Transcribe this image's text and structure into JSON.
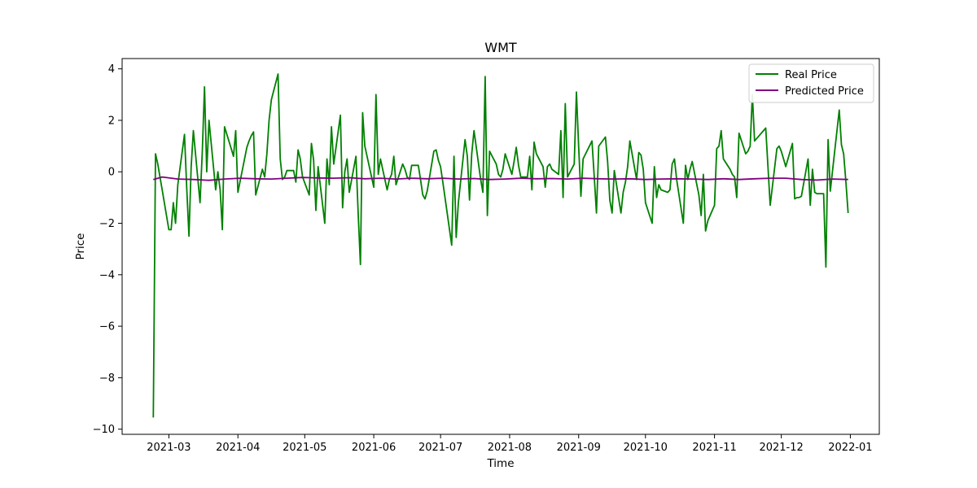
{
  "chart_data": {
    "type": "line",
    "title": "WMT",
    "xlabel": "Time",
    "ylabel": "Price",
    "x_range": [
      "2021-02-08",
      "2022-01-14"
    ],
    "ylim": [
      -10.2,
      4.4
    ],
    "x_ticks": [
      "2021-03",
      "2021-04",
      "2021-05",
      "2021-06",
      "2021-07",
      "2021-08",
      "2021-09",
      "2021-10",
      "2021-11",
      "2021-12",
      "2022-01"
    ],
    "y_ticks": [
      -10,
      -8,
      -6,
      -4,
      -2,
      0,
      2,
      4
    ],
    "grid": false,
    "legend_position": "upper right",
    "series": [
      {
        "name": "Real Price",
        "color": "#008000",
        "points": [
          [
            "2021-02-22",
            -9.55
          ],
          [
            "2021-02-23",
            0.7
          ],
          [
            "2021-02-24",
            0.3
          ],
          [
            "2021-02-25",
            -0.2
          ],
          [
            "2021-02-26",
            -0.7
          ],
          [
            "2021-03-01",
            -2.25
          ],
          [
            "2021-03-02",
            -2.25
          ],
          [
            "2021-03-03",
            -1.2
          ],
          [
            "2021-03-04",
            -2.0
          ],
          [
            "2021-03-05",
            -0.5
          ],
          [
            "2021-03-08",
            1.45
          ],
          [
            "2021-03-09",
            -0.6
          ],
          [
            "2021-03-10",
            -2.5
          ],
          [
            "2021-03-11",
            0.2
          ],
          [
            "2021-03-12",
            1.6
          ],
          [
            "2021-03-15",
            -1.2
          ],
          [
            "2021-03-16",
            0.8
          ],
          [
            "2021-03-17",
            3.3
          ],
          [
            "2021-03-18",
            0.0
          ],
          [
            "2021-03-19",
            2.0
          ],
          [
            "2021-03-22",
            -0.7
          ],
          [
            "2021-03-23",
            0.0
          ],
          [
            "2021-03-24",
            -0.7
          ],
          [
            "2021-03-25",
            -2.25
          ],
          [
            "2021-03-26",
            1.75
          ],
          [
            "2021-03-29",
            0.9
          ],
          [
            "2021-03-30",
            0.6
          ],
          [
            "2021-03-31",
            1.6
          ],
          [
            "2021-04-01",
            -0.8
          ],
          [
            "2021-04-05",
            0.95
          ],
          [
            "2021-04-06",
            1.2
          ],
          [
            "2021-04-07",
            1.4
          ],
          [
            "2021-04-08",
            1.55
          ],
          [
            "2021-04-09",
            -0.9
          ],
          [
            "2021-04-12",
            0.1
          ],
          [
            "2021-04-13",
            -0.2
          ],
          [
            "2021-04-14",
            0.7
          ],
          [
            "2021-04-15",
            2.0
          ],
          [
            "2021-04-16",
            2.8
          ],
          [
            "2021-04-19",
            3.8
          ],
          [
            "2021-04-20",
            0.5
          ],
          [
            "2021-04-21",
            -0.3
          ],
          [
            "2021-04-22",
            -0.2
          ],
          [
            "2021-04-23",
            0.05
          ],
          [
            "2021-04-26",
            0.05
          ],
          [
            "2021-04-27",
            -0.4
          ],
          [
            "2021-04-28",
            0.85
          ],
          [
            "2021-04-29",
            0.5
          ],
          [
            "2021-04-30",
            -0.2
          ],
          [
            "2021-05-03",
            -0.9
          ],
          [
            "2021-05-04",
            1.1
          ],
          [
            "2021-05-05",
            0.45
          ],
          [
            "2021-05-06",
            -1.5
          ],
          [
            "2021-05-07",
            0.2
          ],
          [
            "2021-05-10",
            -2.0
          ],
          [
            "2021-05-11",
            0.5
          ],
          [
            "2021-05-12",
            -0.5
          ],
          [
            "2021-05-13",
            1.75
          ],
          [
            "2021-05-14",
            0.3
          ],
          [
            "2021-05-17",
            2.2
          ],
          [
            "2021-05-18",
            -1.4
          ],
          [
            "2021-05-19",
            0.0
          ],
          [
            "2021-05-20",
            0.5
          ],
          [
            "2021-05-21",
            -0.8
          ],
          [
            "2021-05-24",
            0.6
          ],
          [
            "2021-05-25",
            -1.6
          ],
          [
            "2021-05-26",
            -3.6
          ],
          [
            "2021-05-27",
            2.3
          ],
          [
            "2021-05-28",
            1.0
          ],
          [
            "2021-06-01",
            -0.6
          ],
          [
            "2021-06-02",
            3.0
          ],
          [
            "2021-06-03",
            -0.1
          ],
          [
            "2021-06-04",
            0.5
          ],
          [
            "2021-06-07",
            -0.7
          ],
          [
            "2021-06-08",
            -0.3
          ],
          [
            "2021-06-09",
            -0.1
          ],
          [
            "2021-06-10",
            0.6
          ],
          [
            "2021-06-11",
            -0.5
          ],
          [
            "2021-06-14",
            0.3
          ],
          [
            "2021-06-15",
            0.1
          ],
          [
            "2021-06-16",
            -0.2
          ],
          [
            "2021-06-17",
            -0.3
          ],
          [
            "2021-06-18",
            0.25
          ],
          [
            "2021-06-21",
            0.25
          ],
          [
            "2021-06-22",
            -0.3
          ],
          [
            "2021-06-23",
            -0.9
          ],
          [
            "2021-06-24",
            -1.05
          ],
          [
            "2021-06-25",
            -0.75
          ],
          [
            "2021-06-28",
            0.8
          ],
          [
            "2021-06-29",
            0.85
          ],
          [
            "2021-06-30",
            0.45
          ],
          [
            "2021-07-01",
            0.2
          ],
          [
            "2021-07-02",
            -0.4
          ],
          [
            "2021-07-06",
            -2.85
          ],
          [
            "2021-07-07",
            0.6
          ],
          [
            "2021-07-08",
            -2.55
          ],
          [
            "2021-07-09",
            -1.2
          ],
          [
            "2021-07-12",
            1.25
          ],
          [
            "2021-07-13",
            0.6
          ],
          [
            "2021-07-14",
            -1.1
          ],
          [
            "2021-07-15",
            0.7
          ],
          [
            "2021-07-16",
            1.6
          ],
          [
            "2021-07-19",
            -0.3
          ],
          [
            "2021-07-20",
            -0.8
          ],
          [
            "2021-07-21",
            3.7
          ],
          [
            "2021-07-22",
            -1.7
          ],
          [
            "2021-07-23",
            0.8
          ],
          [
            "2021-07-26",
            0.3
          ],
          [
            "2021-07-27",
            -0.1
          ],
          [
            "2021-07-28",
            -0.2
          ],
          [
            "2021-07-29",
            0.1
          ],
          [
            "2021-07-30",
            0.7
          ],
          [
            "2021-08-02",
            -0.1
          ],
          [
            "2021-08-03",
            0.4
          ],
          [
            "2021-08-04",
            0.95
          ],
          [
            "2021-08-05",
            0.25
          ],
          [
            "2021-08-06",
            -0.2
          ],
          [
            "2021-08-09",
            -0.2
          ],
          [
            "2021-08-10",
            0.6
          ],
          [
            "2021-08-11",
            -0.7
          ],
          [
            "2021-08-12",
            1.15
          ],
          [
            "2021-08-13",
            0.7
          ],
          [
            "2021-08-16",
            0.2
          ],
          [
            "2021-08-17",
            -0.6
          ],
          [
            "2021-08-18",
            0.2
          ],
          [
            "2021-08-19",
            0.3
          ],
          [
            "2021-08-20",
            0.1
          ],
          [
            "2021-08-23",
            -0.1
          ],
          [
            "2021-08-24",
            1.6
          ],
          [
            "2021-08-25",
            -1.0
          ],
          [
            "2021-08-26",
            2.65
          ],
          [
            "2021-08-27",
            -0.2
          ],
          [
            "2021-08-30",
            0.3
          ],
          [
            "2021-08-31",
            3.1
          ],
          [
            "2021-09-01",
            1.0
          ],
          [
            "2021-09-02",
            -0.95
          ],
          [
            "2021-09-03",
            0.5
          ],
          [
            "2021-09-07",
            1.2
          ],
          [
            "2021-09-08",
            -0.2
          ],
          [
            "2021-09-09",
            -1.6
          ],
          [
            "2021-09-10",
            1.0
          ],
          [
            "2021-09-13",
            1.35
          ],
          [
            "2021-09-14",
            0.4
          ],
          [
            "2021-09-15",
            -1.1
          ],
          [
            "2021-09-16",
            -1.6
          ],
          [
            "2021-09-17",
            0.05
          ],
          [
            "2021-09-20",
            -1.6
          ],
          [
            "2021-09-21",
            -0.8
          ],
          [
            "2021-09-22",
            -0.4
          ],
          [
            "2021-09-23",
            0.2
          ],
          [
            "2021-09-24",
            1.2
          ],
          [
            "2021-09-27",
            -0.3
          ],
          [
            "2021-09-28",
            0.75
          ],
          [
            "2021-09-29",
            0.65
          ],
          [
            "2021-09-30",
            0.1
          ],
          [
            "2021-10-01",
            -1.2
          ],
          [
            "2021-10-04",
            -2.0
          ],
          [
            "2021-10-05",
            0.2
          ],
          [
            "2021-10-06",
            -1.0
          ],
          [
            "2021-10-07",
            -0.5
          ],
          [
            "2021-10-08",
            -0.7
          ],
          [
            "2021-10-11",
            -0.8
          ],
          [
            "2021-10-12",
            -0.7
          ],
          [
            "2021-10-13",
            0.3
          ],
          [
            "2021-10-14",
            0.5
          ],
          [
            "2021-10-15",
            -0.3
          ],
          [
            "2021-10-18",
            -2.0
          ],
          [
            "2021-10-19",
            0.25
          ],
          [
            "2021-10-20",
            -0.3
          ],
          [
            "2021-10-21",
            0.1
          ],
          [
            "2021-10-22",
            0.4
          ],
          [
            "2021-10-25",
            -0.9
          ],
          [
            "2021-10-26",
            -1.7
          ],
          [
            "2021-10-27",
            -0.1
          ],
          [
            "2021-10-28",
            -2.3
          ],
          [
            "2021-10-29",
            -1.9
          ],
          [
            "2021-11-01",
            -1.3
          ],
          [
            "2021-11-02",
            0.9
          ],
          [
            "2021-11-03",
            1.0
          ],
          [
            "2021-11-04",
            1.6
          ],
          [
            "2021-11-05",
            0.5
          ],
          [
            "2021-11-08",
            0.1
          ],
          [
            "2021-11-09",
            -0.1
          ],
          [
            "2021-11-10",
            -0.2
          ],
          [
            "2021-11-11",
            -1.0
          ],
          [
            "2021-11-12",
            1.5
          ],
          [
            "2021-11-15",
            0.7
          ],
          [
            "2021-11-16",
            0.8
          ],
          [
            "2021-11-17",
            1.0
          ],
          [
            "2021-11-18",
            3.0
          ],
          [
            "2021-11-19",
            1.2
          ],
          [
            "2021-11-22",
            1.5
          ],
          [
            "2021-11-23",
            1.6
          ],
          [
            "2021-11-24",
            1.7
          ],
          [
            "2021-11-26",
            -1.3
          ],
          [
            "2021-11-29",
            0.9
          ],
          [
            "2021-11-30",
            1.0
          ],
          [
            "2021-12-01",
            0.8
          ],
          [
            "2021-12-02",
            0.5
          ],
          [
            "2021-12-03",
            0.2
          ],
          [
            "2021-12-06",
            1.1
          ],
          [
            "2021-12-07",
            -1.05
          ],
          [
            "2021-12-08",
            -1.0
          ],
          [
            "2021-12-09",
            -1.0
          ],
          [
            "2021-12-10",
            -0.95
          ],
          [
            "2021-12-13",
            0.5
          ],
          [
            "2021-12-14",
            -1.3
          ],
          [
            "2021-12-15",
            0.1
          ],
          [
            "2021-12-16",
            -0.8
          ],
          [
            "2021-12-17",
            -0.85
          ],
          [
            "2021-12-20",
            -0.85
          ],
          [
            "2021-12-21",
            -3.7
          ],
          [
            "2021-12-22",
            1.25
          ],
          [
            "2021-12-23",
            -0.75
          ],
          [
            "2021-12-27",
            2.4
          ],
          [
            "2021-12-28",
            1.05
          ],
          [
            "2021-12-29",
            0.7
          ],
          [
            "2021-12-30",
            -0.4
          ],
          [
            "2021-12-31",
            -1.6
          ]
        ]
      },
      {
        "name": "Predicted Price",
        "color": "#800080",
        "points": [
          [
            "2021-02-22",
            -0.3
          ],
          [
            "2021-02-26",
            -0.2
          ],
          [
            "2021-03-05",
            -0.28
          ],
          [
            "2021-03-12",
            -0.3
          ],
          [
            "2021-03-19",
            -0.33
          ],
          [
            "2021-03-26",
            -0.28
          ],
          [
            "2021-04-02",
            -0.25
          ],
          [
            "2021-04-09",
            -0.27
          ],
          [
            "2021-04-16",
            -0.28
          ],
          [
            "2021-04-23",
            -0.25
          ],
          [
            "2021-04-30",
            -0.22
          ],
          [
            "2021-05-07",
            -0.24
          ],
          [
            "2021-05-14",
            -0.25
          ],
          [
            "2021-05-21",
            -0.23
          ],
          [
            "2021-05-28",
            -0.27
          ],
          [
            "2021-06-04",
            -0.25
          ],
          [
            "2021-06-11",
            -0.28
          ],
          [
            "2021-06-18",
            -0.25
          ],
          [
            "2021-06-25",
            -0.27
          ],
          [
            "2021-07-02",
            -0.25
          ],
          [
            "2021-07-09",
            -0.28
          ],
          [
            "2021-07-16",
            -0.26
          ],
          [
            "2021-07-23",
            -0.3
          ],
          [
            "2021-07-30",
            -0.28
          ],
          [
            "2021-08-06",
            -0.25
          ],
          [
            "2021-08-13",
            -0.27
          ],
          [
            "2021-08-20",
            -0.26
          ],
          [
            "2021-08-27",
            -0.28
          ],
          [
            "2021-09-03",
            -0.25
          ],
          [
            "2021-09-10",
            -0.27
          ],
          [
            "2021-09-17",
            -0.28
          ],
          [
            "2021-09-24",
            -0.27
          ],
          [
            "2021-10-01",
            -0.3
          ],
          [
            "2021-10-08",
            -0.28
          ],
          [
            "2021-10-15",
            -0.27
          ],
          [
            "2021-10-22",
            -0.28
          ],
          [
            "2021-10-29",
            -0.3
          ],
          [
            "2021-11-05",
            -0.27
          ],
          [
            "2021-11-12",
            -0.3
          ],
          [
            "2021-11-19",
            -0.27
          ],
          [
            "2021-11-26",
            -0.25
          ],
          [
            "2021-12-03",
            -0.25
          ],
          [
            "2021-12-10",
            -0.3
          ],
          [
            "2021-12-17",
            -0.32
          ],
          [
            "2021-12-24",
            -0.28
          ],
          [
            "2021-12-31",
            -0.3
          ]
        ]
      }
    ]
  }
}
